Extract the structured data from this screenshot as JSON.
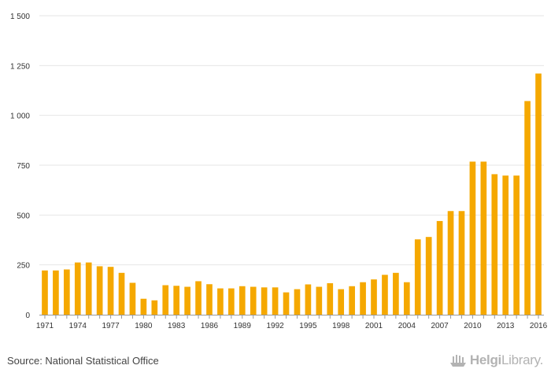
{
  "chart_data": {
    "type": "bar",
    "title": "",
    "xlabel": "",
    "ylabel": "",
    "ylim": [
      0,
      1500
    ],
    "yticks": [
      {
        "value": 0,
        "label": "0"
      },
      {
        "value": 250,
        "label": "250"
      },
      {
        "value": 500,
        "label": "500"
      },
      {
        "value": 750,
        "label": "750"
      },
      {
        "value": 1000,
        "label": "1 000"
      },
      {
        "value": 1250,
        "label": "1 250"
      },
      {
        "value": 1500,
        "label": "1 500"
      }
    ],
    "xtick_labels": [
      "1971",
      "1974",
      "1977",
      "1980",
      "1983",
      "1986",
      "1989",
      "1992",
      "1995",
      "1998",
      "2001",
      "2004",
      "2007",
      "2010",
      "2013",
      "2016"
    ],
    "categories": [
      "1971",
      "1972",
      "1973",
      "1974",
      "1975",
      "1976",
      "1977",
      "1978",
      "1979",
      "1980",
      "1981",
      "1982",
      "1983",
      "1984",
      "1985",
      "1986",
      "1987",
      "1988",
      "1989",
      "1990",
      "1991",
      "1992",
      "1993",
      "1994",
      "1995",
      "1996",
      "1997",
      "1998",
      "1999",
      "2000",
      "2001",
      "2002",
      "2003",
      "2004",
      "2005",
      "2006",
      "2007",
      "2008",
      "2009",
      "2010",
      "2011",
      "2012",
      "2013",
      "2014",
      "2015",
      "2016"
    ],
    "values": [
      222,
      222,
      227,
      262,
      262,
      243,
      240,
      210,
      160,
      80,
      72,
      148,
      145,
      140,
      168,
      153,
      132,
      132,
      143,
      140,
      137,
      137,
      112,
      128,
      152,
      140,
      158,
      128,
      143,
      163,
      177,
      200,
      210,
      163,
      378,
      390,
      470,
      520,
      520,
      768,
      768,
      705,
      698,
      698,
      1072,
      1210
    ],
    "bar_color": "#f5a800",
    "grid": true
  },
  "footer": {
    "source": "Source: National Statistical Office",
    "brand_prefix": "Helgi",
    "brand_suffix": "Library."
  }
}
